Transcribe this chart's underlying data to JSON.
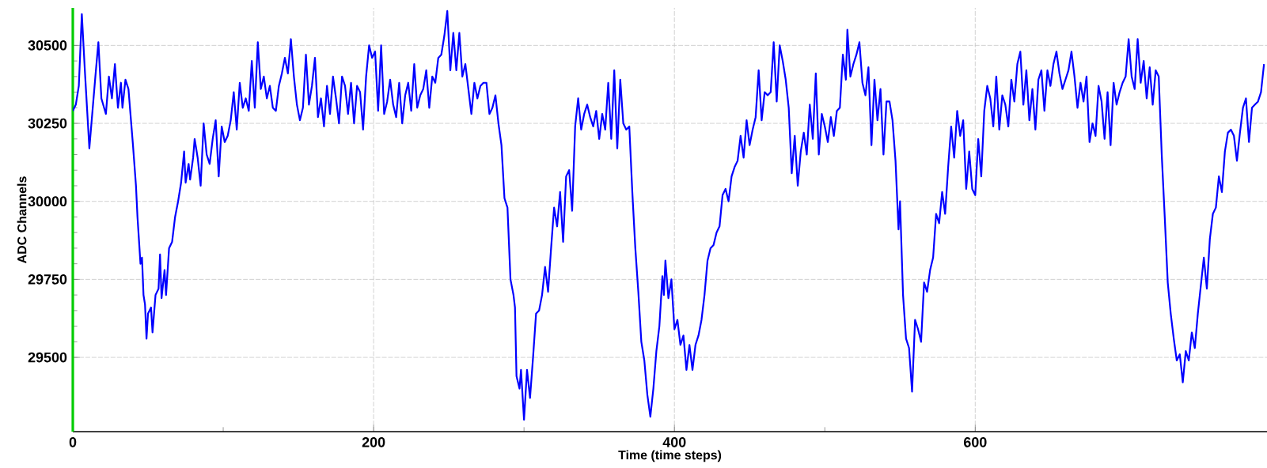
{
  "chart_data": {
    "type": "line",
    "xlabel": "Time (time steps)",
    "ylabel": "ADC Channels",
    "xlim": [
      0,
      794
    ],
    "ylim": [
      29262,
      30620
    ],
    "xticks": [
      0,
      200,
      400,
      600
    ],
    "yticks": [
      29500,
      29750,
      30000,
      30250,
      30500
    ],
    "grid": true,
    "marker": "none",
    "line_style": "solid",
    "x": [
      0,
      2,
      4,
      6,
      8,
      11,
      15,
      17,
      19,
      22,
      24,
      26,
      28,
      30,
      32,
      33,
      35,
      37,
      40,
      42,
      43,
      45,
      46,
      47,
      48,
      49,
      50,
      52,
      53,
      55,
      57,
      58,
      59,
      61,
      62,
      64,
      66,
      68,
      70,
      72,
      74,
      75,
      77,
      78,
      80,
      81,
      83,
      85,
      87,
      89,
      91,
      93,
      95,
      97,
      99,
      101,
      103,
      105,
      107,
      109,
      111,
      113,
      115,
      117,
      119,
      121,
      123,
      125,
      127,
      129,
      131,
      133,
      135,
      137,
      139,
      141,
      143,
      145,
      147,
      149,
      151,
      153,
      155,
      157,
      159,
      161,
      163,
      165,
      167,
      169,
      171,
      173,
      175,
      177,
      179,
      181,
      183,
      185,
      187,
      189,
      191,
      193,
      195,
      197,
      199,
      201,
      203,
      205,
      207,
      209,
      211,
      213,
      215,
      217,
      219,
      221,
      223,
      225,
      227,
      229,
      231,
      233,
      235,
      237,
      239,
      241,
      243,
      245,
      247,
      249,
      251,
      253,
      255,
      257,
      259,
      261,
      263,
      265,
      267,
      269,
      271,
      273,
      275,
      277,
      279,
      281,
      283,
      285,
      287,
      289,
      291,
      293,
      294,
      295,
      297,
      298,
      300,
      302,
      304,
      306,
      308,
      310,
      312,
      314,
      316,
      318,
      320,
      322,
      324,
      326,
      328,
      330,
      332,
      334,
      336,
      338,
      340,
      342,
      344,
      346,
      348,
      350,
      352,
      354,
      356,
      358,
      360,
      362,
      364,
      366,
      368,
      370,
      372,
      374,
      376,
      378,
      380,
      382,
      384,
      386,
      388,
      390,
      392,
      393,
      394,
      396,
      398,
      400,
      402,
      404,
      406,
      408,
      410,
      412,
      414,
      416,
      418,
      420,
      422,
      424,
      426,
      428,
      430,
      432,
      434,
      436,
      438,
      440,
      442,
      444,
      446,
      448,
      450,
      452,
      454,
      456,
      458,
      460,
      462,
      464,
      466,
      468,
      470,
      472,
      474,
      476,
      478,
      480,
      482,
      484,
      486,
      488,
      490,
      492,
      494,
      496,
      498,
      500,
      502,
      504,
      506,
      508,
      510,
      512,
      514,
      515,
      517,
      519,
      521,
      523,
      525,
      527,
      529,
      531,
      533,
      535,
      537,
      539,
      541,
      543,
      545,
      547,
      549,
      550,
      552,
      554,
      556,
      558,
      560,
      562,
      564,
      566,
      568,
      570,
      572,
      574,
      576,
      578,
      580,
      582,
      584,
      586,
      588,
      590,
      592,
      594,
      596,
      598,
      600,
      602,
      604,
      606,
      608,
      610,
      612,
      614,
      616,
      618,
      620,
      622,
      624,
      626,
      628,
      630,
      632,
      634,
      636,
      638,
      640,
      642,
      644,
      646,
      648,
      650,
      652,
      654,
      656,
      658,
      660,
      662,
      664,
      666,
      668,
      670,
      672,
      674,
      676,
      678,
      680,
      682,
      684,
      686,
      688,
      690,
      692,
      694,
      696,
      698,
      700,
      702,
      704,
      706,
      708,
      710,
      712,
      714,
      716,
      718,
      720,
      722,
      724,
      726,
      728,
      730,
      732,
      734,
      736,
      738,
      740,
      742,
      744,
      746,
      748,
      750,
      752,
      754,
      756,
      758,
      760,
      762,
      764,
      766,
      768,
      770,
      772,
      774,
      776,
      778,
      780,
      782,
      784,
      786,
      788,
      790,
      792
    ],
    "series": [
      {
        "color": "#0000ff",
        "values": [
          30290,
          30310,
          30370,
          30600,
          30420,
          30170,
          30400,
          30510,
          30330,
          30280,
          30400,
          30330,
          30440,
          30300,
          30380,
          30300,
          30390,
          30360,
          30180,
          30050,
          29950,
          29800,
          29820,
          29700,
          29670,
          29560,
          29640,
          29660,
          29580,
          29700,
          29720,
          29830,
          29690,
          29780,
          29700,
          29850,
          29870,
          29950,
          30000,
          30060,
          30160,
          30060,
          30120,
          30070,
          30140,
          30200,
          30140,
          30050,
          30250,
          30150,
          30120,
          30200,
          30260,
          30080,
          30240,
          30190,
          30210,
          30260,
          30350,
          30230,
          30380,
          30300,
          30330,
          30290,
          30450,
          30300,
          30510,
          30360,
          30400,
          30330,
          30370,
          30300,
          30290,
          30370,
          30410,
          30460,
          30410,
          30520,
          30400,
          30310,
          30260,
          30300,
          30470,
          30310,
          30370,
          30460,
          30270,
          30330,
          30240,
          30370,
          30280,
          30400,
          30330,
          30250,
          30400,
          30370,
          30280,
          30380,
          30250,
          30370,
          30350,
          30230,
          30400,
          30500,
          30460,
          30480,
          30290,
          30500,
          30280,
          30320,
          30390,
          30310,
          30270,
          30380,
          30250,
          30340,
          30380,
          30290,
          30440,
          30300,
          30340,
          30360,
          30420,
          30300,
          30400,
          30380,
          30460,
          30470,
          30530,
          30610,
          30420,
          30540,
          30420,
          30540,
          30400,
          30440,
          30360,
          30280,
          30380,
          30330,
          30370,
          30380,
          30380,
          30280,
          30300,
          30340,
          30250,
          30180,
          30010,
          29980,
          29750,
          29700,
          29660,
          29440,
          29400,
          29460,
          29300,
          29460,
          29370,
          29500,
          29640,
          29650,
          29700,
          29790,
          29710,
          29850,
          29980,
          29920,
          30030,
          29870,
          30080,
          30100,
          29970,
          30240,
          30330,
          30230,
          30280,
          30310,
          30270,
          30240,
          30290,
          30200,
          30280,
          30230,
          30380,
          30200,
          30420,
          30170,
          30390,
          30250,
          30230,
          30240,
          30030,
          29850,
          29710,
          29550,
          29490,
          29380,
          29310,
          29400,
          29520,
          29600,
          29760,
          29700,
          29810,
          29690,
          29750,
          29590,
          29620,
          29540,
          29570,
          29460,
          29540,
          29460,
          29540,
          29570,
          29620,
          29700,
          29810,
          29850,
          29860,
          29900,
          29920,
          30020,
          30040,
          30000,
          30080,
          30110,
          30130,
          30210,
          30140,
          30260,
          30180,
          30230,
          30270,
          30420,
          30260,
          30350,
          30340,
          30350,
          30510,
          30320,
          30500,
          30450,
          30390,
          30300,
          30090,
          30210,
          30050,
          30160,
          30220,
          30150,
          30310,
          30200,
          30410,
          30150,
          30280,
          30240,
          30190,
          30270,
          30210,
          30290,
          30300,
          30470,
          30390,
          30550,
          30400,
          30440,
          30470,
          30510,
          30380,
          30340,
          30430,
          30180,
          30390,
          30260,
          30360,
          30150,
          30320,
          30320,
          30260,
          30130,
          29910,
          30000,
          29700,
          29560,
          29530,
          29390,
          29620,
          29590,
          29550,
          29740,
          29710,
          29780,
          29820,
          29960,
          29930,
          30030,
          29960,
          30110,
          30240,
          30140,
          30290,
          30210,
          30260,
          30040,
          30160,
          30040,
          30020,
          30200,
          30080,
          30290,
          30370,
          30330,
          30240,
          30400,
          30230,
          30340,
          30310,
          30240,
          30390,
          30320,
          30440,
          30480,
          30310,
          30420,
          30260,
          30360,
          30230,
          30390,
          30420,
          30290,
          30420,
          30370,
          30440,
          30480,
          30410,
          30360,
          30390,
          30420,
          30480,
          30400,
          30300,
          30380,
          30320,
          30400,
          30190,
          30250,
          30210,
          30370,
          30320,
          30200,
          30350,
          30180,
          30380,
          30310,
          30350,
          30380,
          30400,
          30520,
          30400,
          30360,
          30520,
          30380,
          30450,
          30330,
          30430,
          30310,
          30420,
          30400,
          30150,
          29950,
          29740,
          29640,
          29560,
          29490,
          29510,
          29420,
          29520,
          29490,
          29580,
          29530,
          29640,
          29730,
          29820,
          29720,
          29880,
          29960,
          29980,
          30080,
          30030,
          30160,
          30220,
          30230,
          30210,
          30130,
          30220,
          30300,
          30330,
          30190,
          30300,
          30310,
          30320,
          30350,
          30440
        ]
      }
    ]
  }
}
